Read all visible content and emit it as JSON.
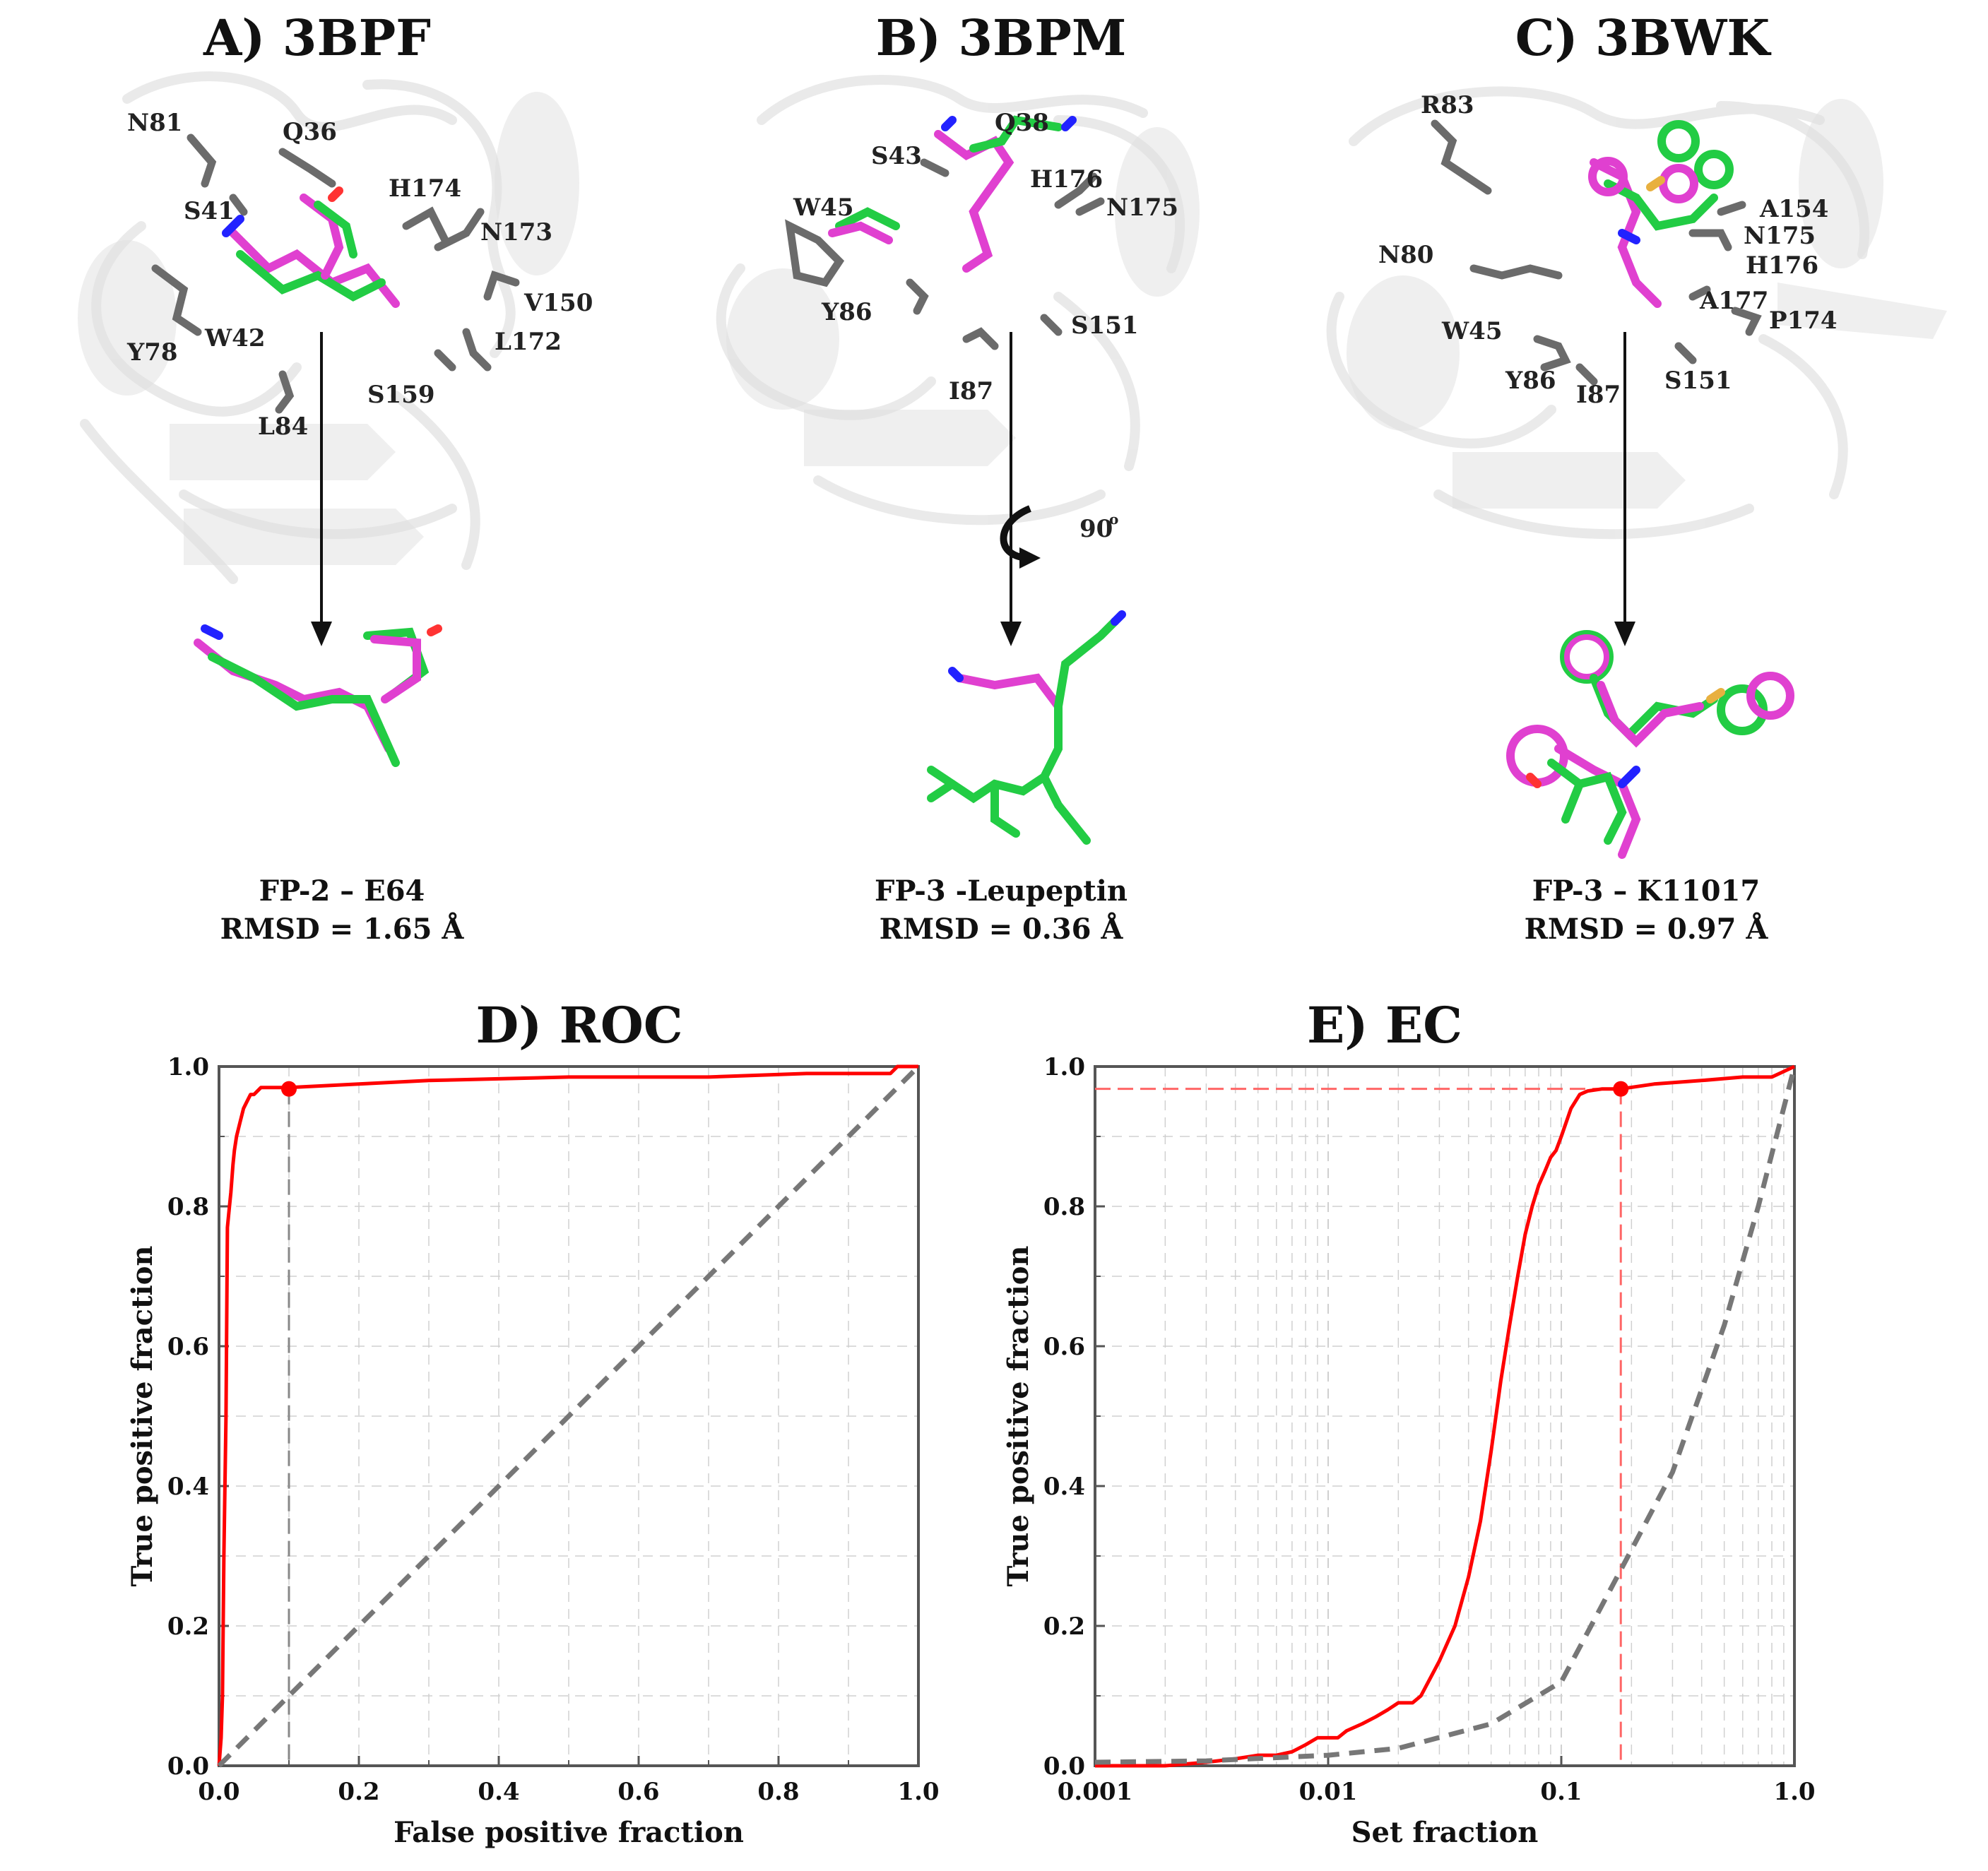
{
  "panels": [
    {
      "title": "A) 3BPF",
      "residues": [
        "N81",
        "Q36",
        "S41",
        "H174",
        "N173",
        "V150",
        "Y78",
        "W42",
        "L172",
        "S159",
        "L84"
      ],
      "caption_line1": "FP-2 – E64",
      "caption_line2": "RMSD = 1.65 Å"
    },
    {
      "title": "B) 3BPM",
      "residues": [
        "Q38",
        "S43",
        "H176",
        "N175",
        "W45",
        "Y86",
        "S151",
        "I87"
      ],
      "rotation_label": "90",
      "rotation_unit": "o",
      "caption_line1": "FP-3 -Leupeptin",
      "caption_line2": "RMSD = 0.36 Å"
    },
    {
      "title": "C) 3BWK",
      "residues": [
        "R83",
        "A154",
        "N175",
        "N80",
        "H176",
        "A177",
        "W45",
        "P174",
        "Y86",
        "I87",
        "S151"
      ],
      "caption_line1": "FP-3 – K11017",
      "caption_line2": "RMSD = 0.97 Å"
    }
  ],
  "chart_data": [
    {
      "type": "line",
      "title": "D) ROC",
      "xlabel": "False positive fraction",
      "ylabel": "True positive fraction",
      "xlim": [
        0,
        1
      ],
      "ylim": [
        0,
        1
      ],
      "x_ticks": [
        "0.0",
        "0.2",
        "0.4",
        "0.6",
        "0.8",
        "1.0"
      ],
      "y_ticks": [
        "0.0",
        "0.2",
        "0.4",
        "0.6",
        "0.8",
        "1.0"
      ],
      "grid": true,
      "series": [
        {
          "color": "#ff0000",
          "x": [
            0,
            0.003,
            0.005,
            0.007,
            0.01,
            0.012,
            0.015,
            0.017,
            0.02,
            0.022,
            0.025,
            0.03,
            0.035,
            0.04,
            0.045,
            0.05,
            0.06,
            0.1,
            0.2,
            0.3,
            0.5,
            0.7,
            0.84,
            0.9,
            0.96,
            0.97,
            1.0
          ],
          "y": [
            0,
            0.04,
            0.1,
            0.3,
            0.5,
            0.77,
            0.8,
            0.82,
            0.86,
            0.88,
            0.9,
            0.92,
            0.94,
            0.95,
            0.96,
            0.96,
            0.97,
            0.97,
            0.975,
            0.98,
            0.985,
            0.985,
            0.99,
            0.99,
            0.99,
            1.0,
            1.0
          ]
        },
        {
          "color": "#777777",
          "dashed": true,
          "x": [
            0,
            1
          ],
          "y": [
            0,
            1
          ]
        }
      ],
      "marker": {
        "x": 0.1,
        "y": 0.968,
        "color": "#ff0000"
      },
      "reference_lines": [
        {
          "x": 0.1,
          "color": "#888888"
        }
      ]
    },
    {
      "type": "line",
      "title": "E) EC",
      "xlabel": "Set fraction",
      "ylabel": "True positive fraction",
      "xscale": "log",
      "xlim": [
        0.001,
        1
      ],
      "ylim": [
        0,
        1
      ],
      "x_ticks": [
        "0.001",
        "0.01",
        "0.1",
        "1.0"
      ],
      "x_tick_values": [
        0.001,
        0.01,
        0.1,
        1.0
      ],
      "y_ticks": [
        "0.0",
        "0.2",
        "0.4",
        "0.6",
        "0.8",
        "1.0"
      ],
      "grid": true,
      "series": [
        {
          "color": "#ff0000",
          "x": [
            0.001,
            0.002,
            0.003,
            0.004,
            0.005,
            0.006,
            0.007,
            0.008,
            0.009,
            0.01,
            0.011,
            0.012,
            0.014,
            0.016,
            0.018,
            0.02,
            0.023,
            0.025,
            0.03,
            0.035,
            0.04,
            0.045,
            0.05,
            0.055,
            0.06,
            0.065,
            0.07,
            0.075,
            0.08,
            0.085,
            0.09,
            0.095,
            0.1,
            0.11,
            0.12,
            0.13,
            0.15,
            0.18,
            0.25,
            0.4,
            0.6,
            0.8,
            1.0
          ],
          "y": [
            0,
            0,
            0.005,
            0.01,
            0.015,
            0.015,
            0.02,
            0.03,
            0.04,
            0.04,
            0.04,
            0.05,
            0.06,
            0.07,
            0.08,
            0.09,
            0.09,
            0.1,
            0.15,
            0.2,
            0.27,
            0.35,
            0.45,
            0.55,
            0.63,
            0.7,
            0.76,
            0.8,
            0.83,
            0.85,
            0.87,
            0.88,
            0.9,
            0.94,
            0.96,
            0.965,
            0.968,
            0.968,
            0.975,
            0.98,
            0.985,
            0.985,
            1.0
          ]
        },
        {
          "color": "#777777",
          "dashed": true,
          "x": [
            0.001,
            0.003,
            0.01,
            0.02,
            0.05,
            0.1,
            0.18,
            0.3,
            0.5,
            0.7,
            1.0
          ],
          "y": [
            0.005,
            0.007,
            0.015,
            0.025,
            0.06,
            0.12,
            0.28,
            0.42,
            0.63,
            0.8,
            1.0
          ]
        }
      ],
      "marker": {
        "x": 0.18,
        "y": 0.968,
        "color": "#ff0000"
      },
      "reference_lines": [
        {
          "x": 0.18,
          "color": "#ff6666"
        },
        {
          "y": 0.968,
          "color": "#ff6666"
        }
      ]
    }
  ]
}
